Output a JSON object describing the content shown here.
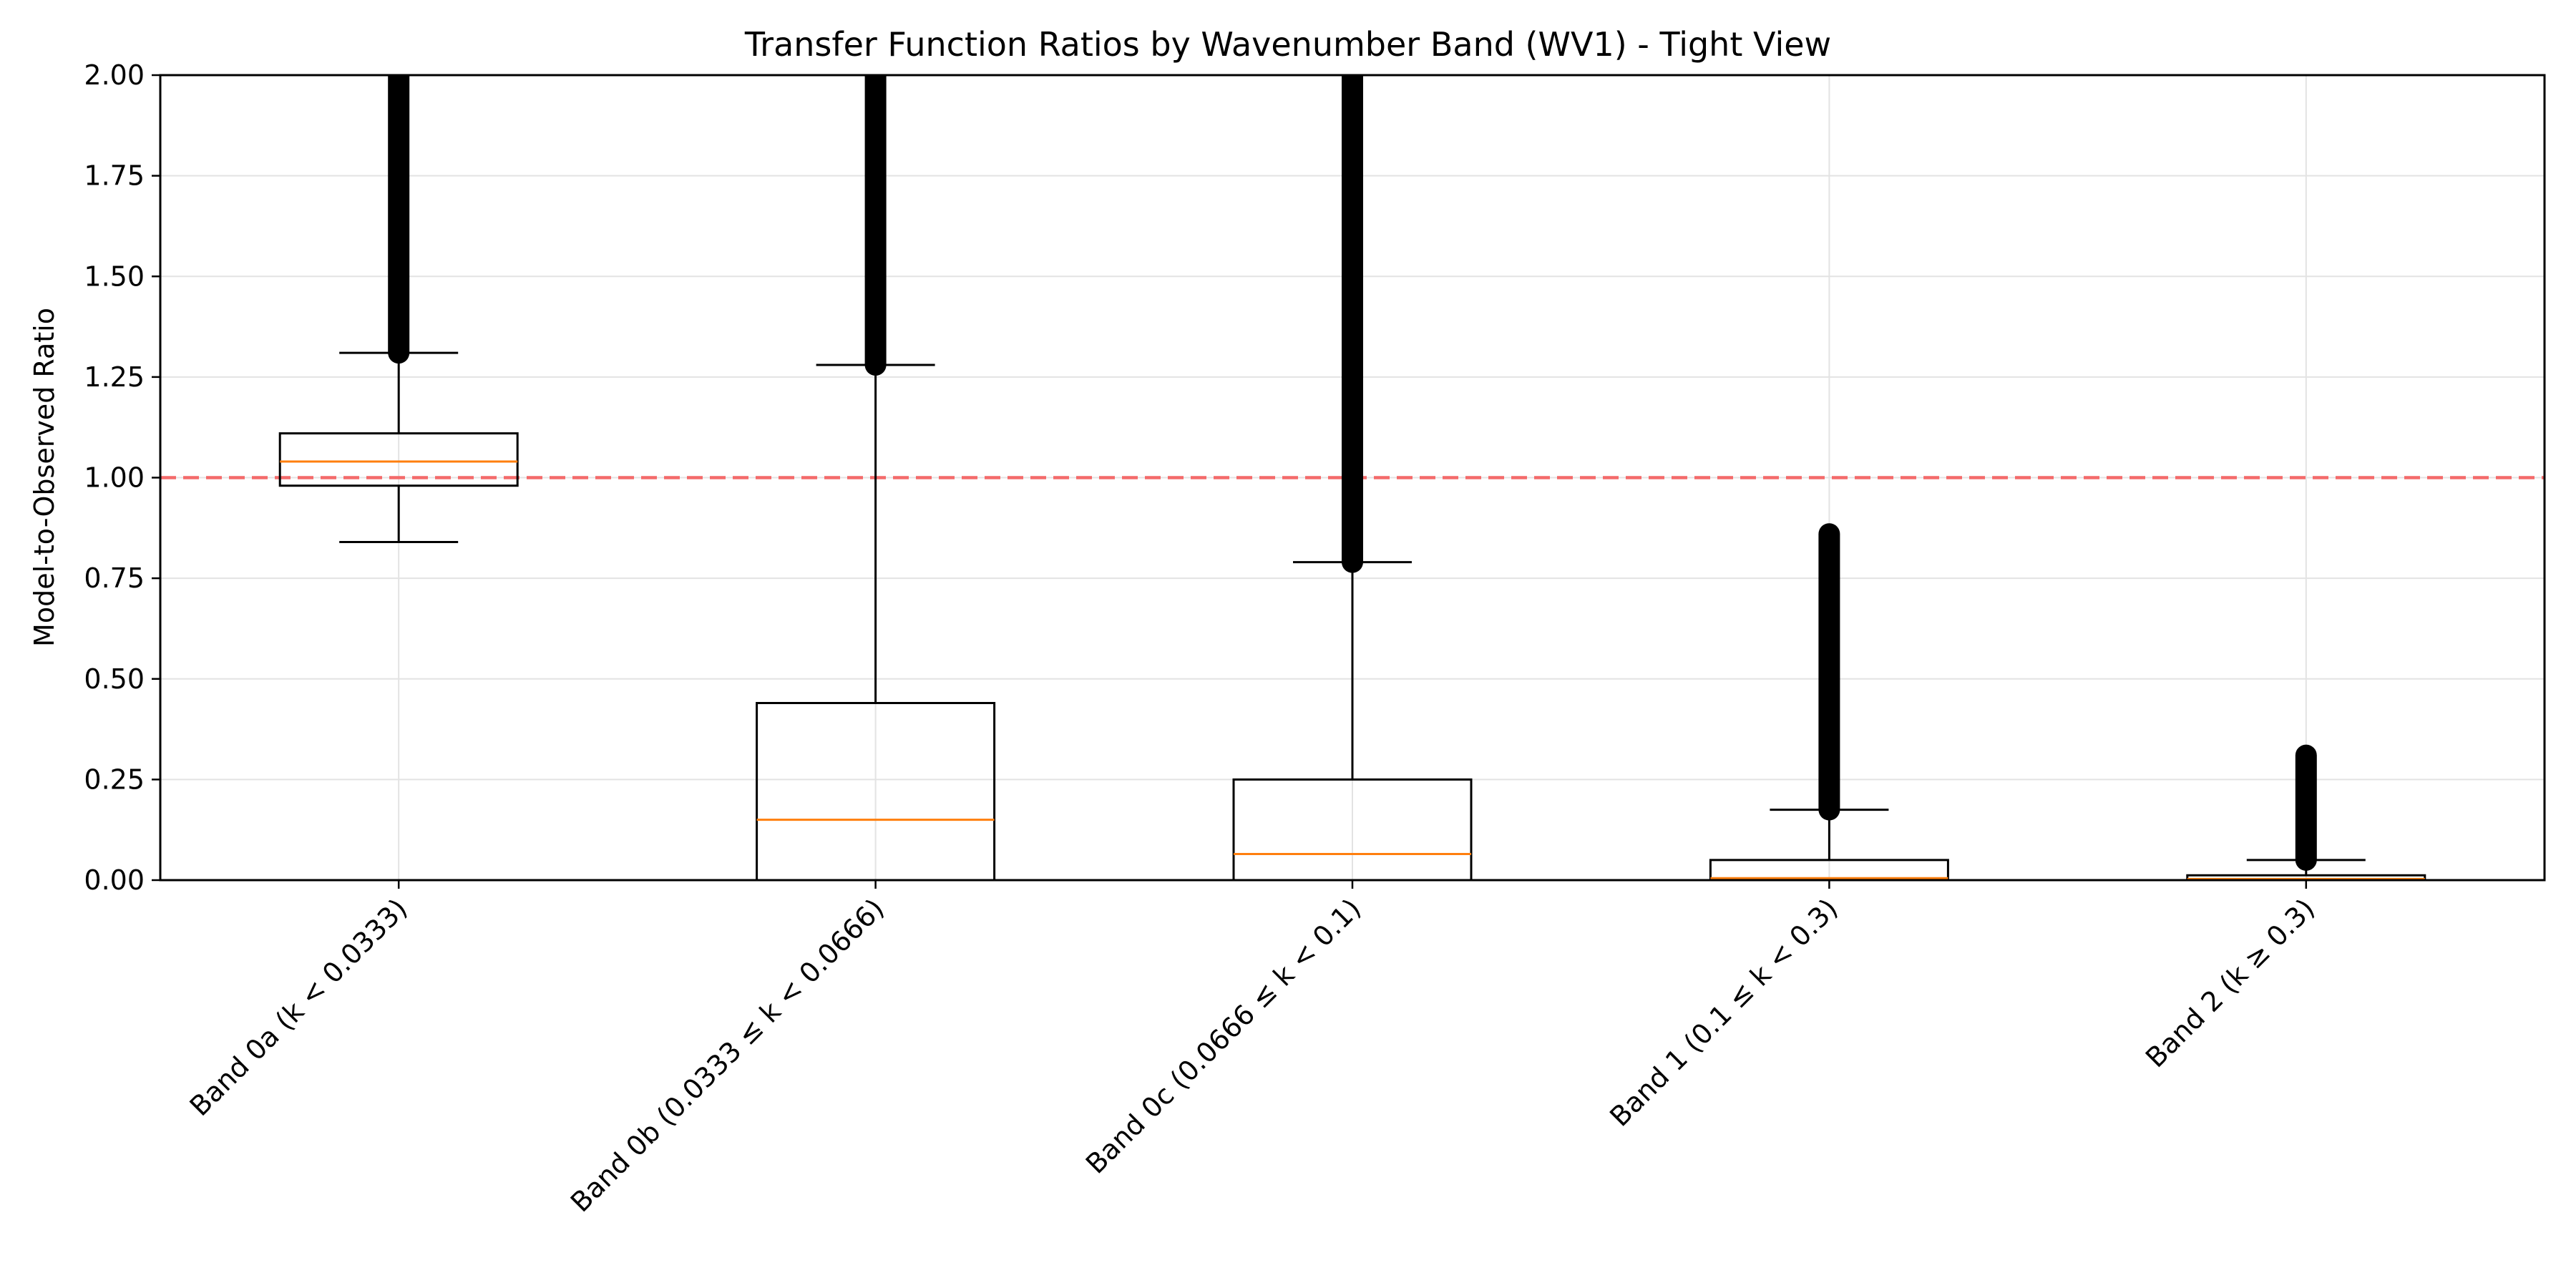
{
  "chart_data": {
    "type": "box",
    "title": "Transfer Function Ratios by Wavenumber Band (WV1) - Tight View",
    "xlabel": "",
    "ylabel": "Model-to-Observed Ratio",
    "ylim": [
      0,
      2
    ],
    "yticks": [
      "0.00",
      "0.25",
      "0.50",
      "0.75",
      "1.00",
      "1.25",
      "1.50",
      "1.75",
      "2.00"
    ],
    "grid": true,
    "reference_line": {
      "y": 1.0,
      "style": "dashed",
      "color": "#f46a6a"
    },
    "colors": {
      "box": "#000000",
      "median": "#ff7f0e",
      "grid": "#e3e3e3",
      "outlier": "#000000"
    },
    "categories": [
      "Band 0a (k < 0.0333)",
      "Band 0b (0.0333 ≤ k < 0.0666)",
      "Band 0c (0.0666 ≤ k < 0.1)",
      "Band 1 (0.1 ≤ k < 0.3)",
      "Band 2 (k ≥ 0.3)"
    ],
    "boxes": [
      {
        "whisker_low": 0.84,
        "q1": 0.98,
        "median": 1.04,
        "q3": 1.11,
        "whisker_high": 1.31,
        "outliers_from": 1.31,
        "outliers_to": 2.0
      },
      {
        "whisker_low": 0.0,
        "q1": 0.0,
        "median": 0.15,
        "q3": 0.44,
        "whisker_high": 1.28,
        "outliers_from": 1.28,
        "outliers_to": 2.0
      },
      {
        "whisker_low": 0.0,
        "q1": 0.0,
        "median": 0.065,
        "q3": 0.25,
        "whisker_high": 0.79,
        "outliers_from": 0.79,
        "outliers_to": 2.0
      },
      {
        "whisker_low": 0.0,
        "q1": 0.0,
        "median": 0.005,
        "q3": 0.05,
        "whisker_high": 0.175,
        "outliers_from": 0.175,
        "outliers_to": 0.86
      },
      {
        "whisker_low": 0.0,
        "q1": 0.0,
        "median": 0.003,
        "q3": 0.012,
        "whisker_high": 0.05,
        "outliers_from": 0.05,
        "outliers_to": 0.31
      }
    ]
  }
}
